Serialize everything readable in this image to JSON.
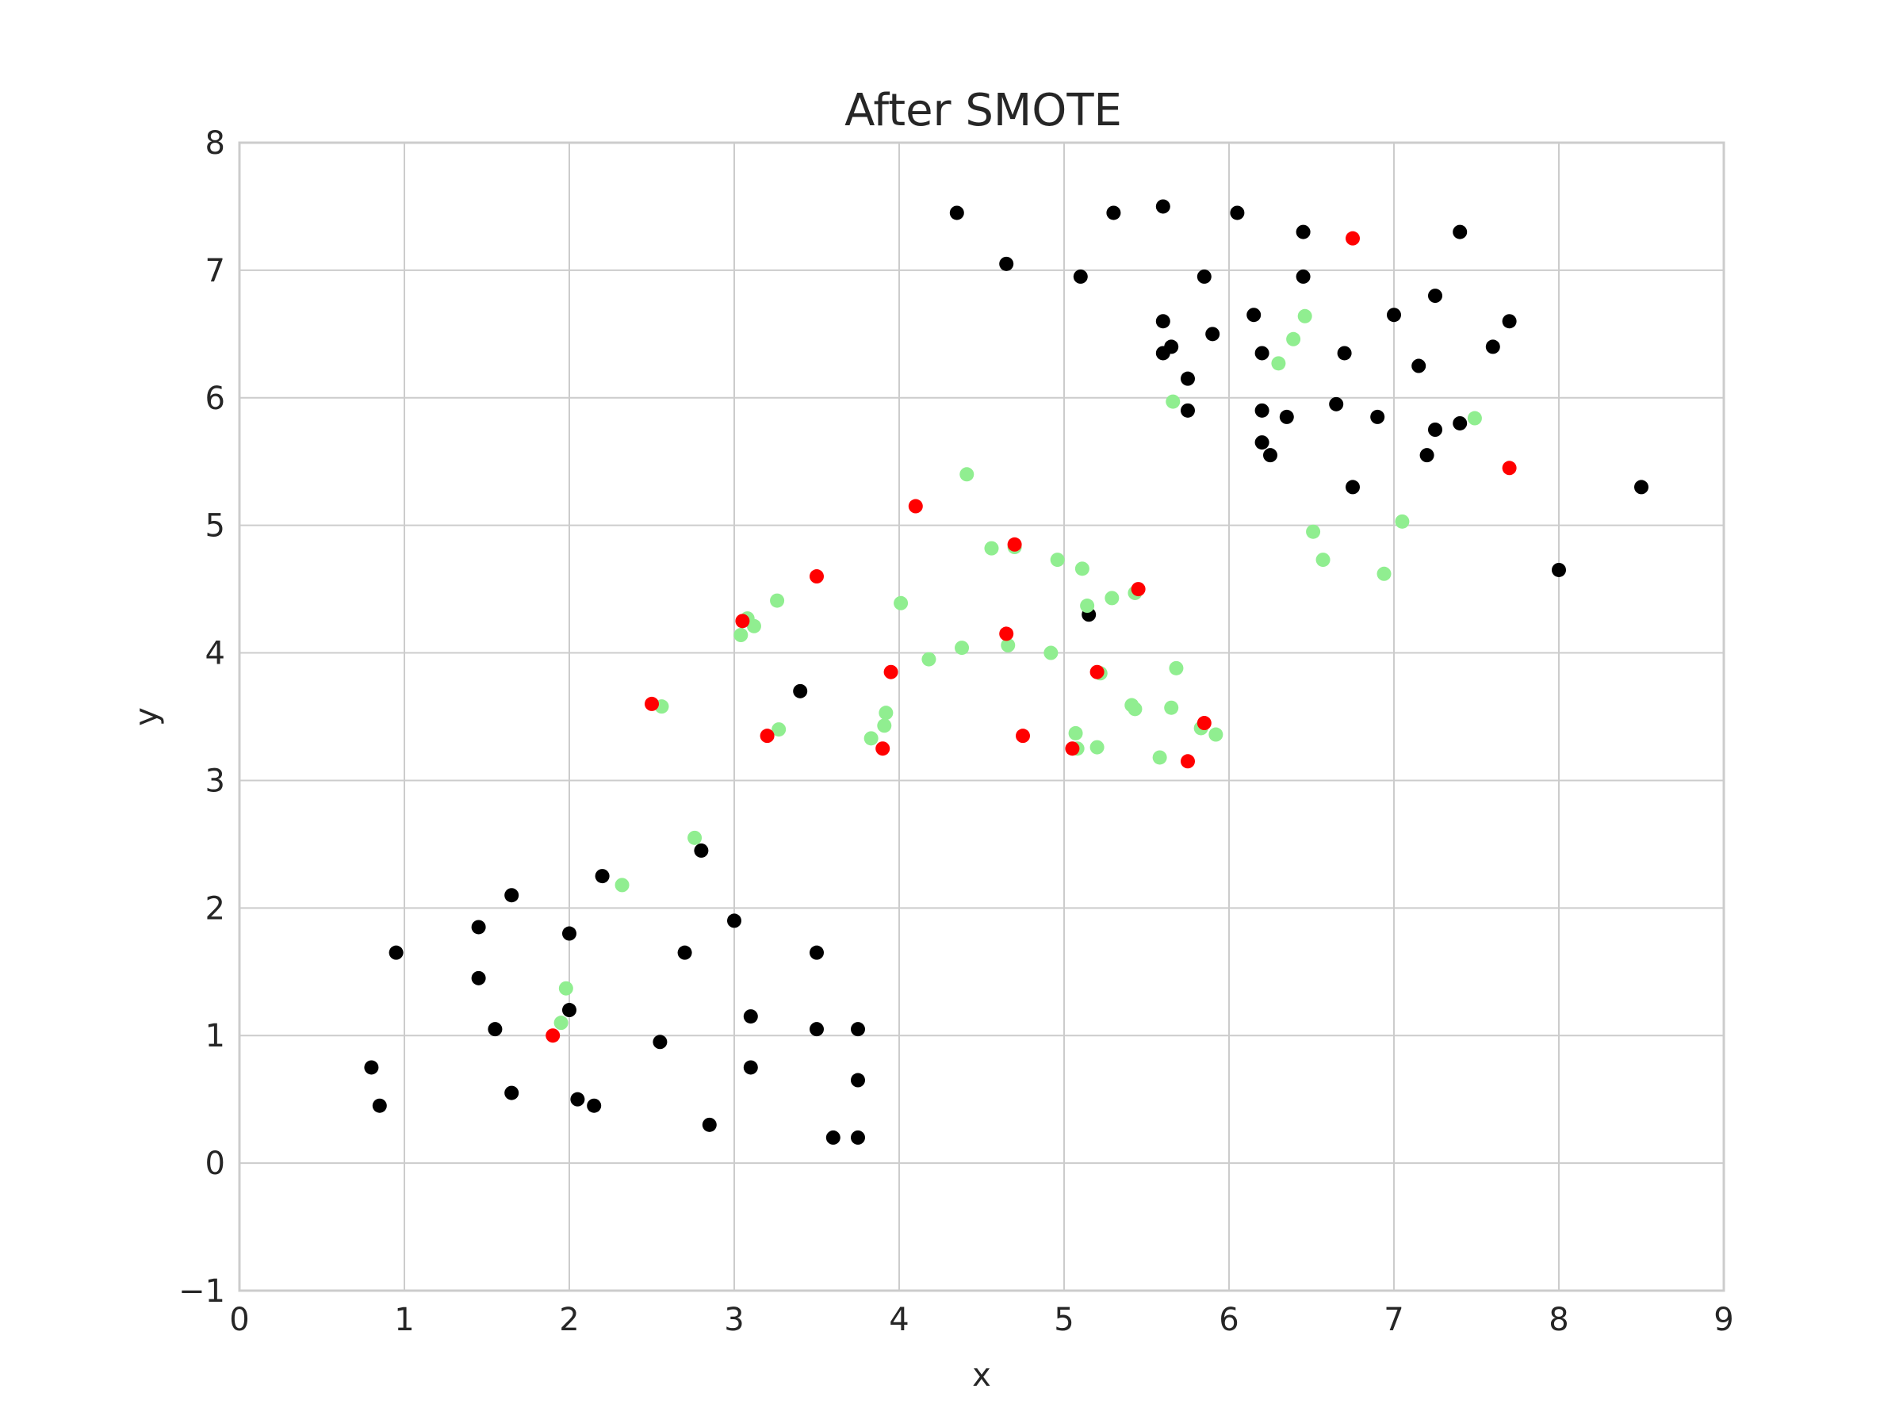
{
  "chart_data": {
    "type": "scatter",
    "title": "After SMOTE",
    "xlabel": "x",
    "ylabel": "y",
    "xlim": [
      0,
      9
    ],
    "ylim": [
      -1,
      8
    ],
    "xticks": [
      0,
      1,
      2,
      3,
      4,
      5,
      6,
      7,
      8,
      9
    ],
    "yticks": [
      -1,
      0,
      1,
      2,
      3,
      4,
      5,
      6,
      7,
      8
    ],
    "grid": true,
    "series": [
      {
        "color": "#000000",
        "points": [
          [
            0.8,
            0.75
          ],
          [
            0.85,
            0.45
          ],
          [
            0.95,
            1.65
          ],
          [
            1.45,
            1.85
          ],
          [
            1.45,
            1.45
          ],
          [
            1.55,
            1.05
          ],
          [
            1.65,
            2.1
          ],
          [
            1.65,
            0.55
          ],
          [
            2.0,
            1.8
          ],
          [
            2.0,
            1.2
          ],
          [
            2.05,
            0.5
          ],
          [
            2.15,
            0.45
          ],
          [
            2.2,
            2.25
          ],
          [
            2.55,
            0.95
          ],
          [
            2.7,
            1.65
          ],
          [
            2.8,
            2.45
          ],
          [
            2.85,
            0.3
          ],
          [
            3.0,
            1.9
          ],
          [
            3.1,
            1.15
          ],
          [
            3.1,
            0.75
          ],
          [
            3.4,
            3.7
          ],
          [
            3.5,
            1.65
          ],
          [
            3.5,
            1.05
          ],
          [
            3.6,
            0.2
          ],
          [
            3.75,
            1.05
          ],
          [
            3.75,
            0.65
          ],
          [
            3.75,
            0.2
          ],
          [
            4.35,
            7.45
          ],
          [
            4.65,
            7.05
          ],
          [
            5.1,
            6.95
          ],
          [
            5.15,
            4.3
          ],
          [
            5.3,
            7.45
          ],
          [
            5.6,
            7.5
          ],
          [
            5.6,
            6.6
          ],
          [
            5.6,
            6.35
          ],
          [
            5.65,
            6.4
          ],
          [
            5.75,
            6.15
          ],
          [
            5.75,
            5.9
          ],
          [
            5.85,
            6.95
          ],
          [
            5.9,
            6.5
          ],
          [
            6.05,
            7.45
          ],
          [
            6.15,
            6.65
          ],
          [
            6.2,
            6.35
          ],
          [
            6.2,
            5.9
          ],
          [
            6.2,
            5.65
          ],
          [
            6.25,
            5.55
          ],
          [
            6.35,
            5.85
          ],
          [
            6.45,
            7.3
          ],
          [
            6.45,
            6.95
          ],
          [
            6.65,
            5.95
          ],
          [
            6.7,
            6.35
          ],
          [
            6.75,
            5.3
          ],
          [
            6.9,
            5.85
          ],
          [
            7.0,
            6.65
          ],
          [
            7.15,
            6.25
          ],
          [
            7.2,
            5.55
          ],
          [
            7.25,
            6.8
          ],
          [
            7.25,
            5.75
          ],
          [
            7.4,
            7.3
          ],
          [
            7.4,
            5.8
          ],
          [
            7.6,
            6.4
          ],
          [
            7.7,
            6.6
          ],
          [
            8.0,
            4.65
          ],
          [
            8.5,
            5.3
          ]
        ]
      },
      {
        "color": "#90ee90",
        "points": [
          [
            1.95,
            1.1
          ],
          [
            1.98,
            1.37
          ],
          [
            2.32,
            2.18
          ],
          [
            2.56,
            3.58
          ],
          [
            2.76,
            2.55
          ],
          [
            3.04,
            4.14
          ],
          [
            3.08,
            4.27
          ],
          [
            3.12,
            4.21
          ],
          [
            3.26,
            4.41
          ],
          [
            3.27,
            3.4
          ],
          [
            3.83,
            3.33
          ],
          [
            3.91,
            3.43
          ],
          [
            3.92,
            3.53
          ],
          [
            4.01,
            4.39
          ],
          [
            4.18,
            3.95
          ],
          [
            4.38,
            4.04
          ],
          [
            4.41,
            5.4
          ],
          [
            4.56,
            4.82
          ],
          [
            4.66,
            4.06
          ],
          [
            4.7,
            4.83
          ],
          [
            4.92,
            4.0
          ],
          [
            4.96,
            4.73
          ],
          [
            5.07,
            3.37
          ],
          [
            5.08,
            3.25
          ],
          [
            5.11,
            4.66
          ],
          [
            5.14,
            4.37
          ],
          [
            5.2,
            3.26
          ],
          [
            5.22,
            3.84
          ],
          [
            5.29,
            4.43
          ],
          [
            5.41,
            3.59
          ],
          [
            5.43,
            3.56
          ],
          [
            5.43,
            4.47
          ],
          [
            5.58,
            3.18
          ],
          [
            5.65,
            3.57
          ],
          [
            5.66,
            5.97
          ],
          [
            5.68,
            3.88
          ],
          [
            5.83,
            3.41
          ],
          [
            5.92,
            3.36
          ],
          [
            6.3,
            6.27
          ],
          [
            6.39,
            6.46
          ],
          [
            6.46,
            6.64
          ],
          [
            6.51,
            4.95
          ],
          [
            6.57,
            4.73
          ],
          [
            6.94,
            4.62
          ],
          [
            7.05,
            5.03
          ],
          [
            7.49,
            5.84
          ]
        ]
      },
      {
        "color": "#ff0000",
        "points": [
          [
            1.9,
            1.0
          ],
          [
            2.5,
            3.6
          ],
          [
            3.05,
            4.25
          ],
          [
            3.2,
            3.35
          ],
          [
            3.5,
            4.6
          ],
          [
            3.9,
            3.25
          ],
          [
            3.95,
            3.85
          ],
          [
            4.1,
            5.15
          ],
          [
            4.65,
            4.15
          ],
          [
            4.7,
            4.85
          ],
          [
            4.75,
            3.35
          ],
          [
            5.05,
            3.25
          ],
          [
            5.2,
            3.85
          ],
          [
            5.45,
            4.5
          ],
          [
            5.75,
            3.15
          ],
          [
            5.85,
            3.45
          ],
          [
            6.75,
            7.25
          ],
          [
            7.7,
            5.45
          ]
        ]
      }
    ]
  }
}
